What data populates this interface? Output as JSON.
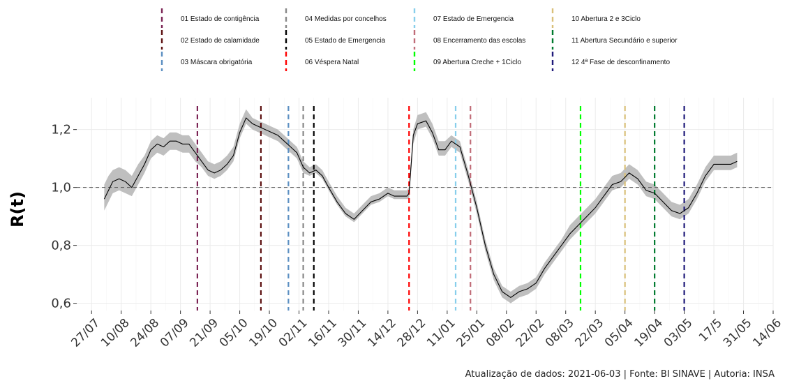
{
  "chart_data": {
    "type": "line",
    "ylabel": "R(t)",
    "xlabel": "",
    "ylim": [
      0.575,
      1.31
    ],
    "yticks": [
      {
        "value": 0.6,
        "label": "0,6"
      },
      {
        "value": 0.8,
        "label": "0,8"
      },
      {
        "value": 1.0,
        "label": "1,0"
      },
      {
        "value": 1.2,
        "label": "1,2"
      }
    ],
    "xlim": [
      "2020-07-20",
      "2021-06-14"
    ],
    "xticks": [
      {
        "date": "2020-07-27",
        "label": "27/07"
      },
      {
        "date": "2020-08-10",
        "label": "10/08"
      },
      {
        "date": "2020-08-24",
        "label": "24/08"
      },
      {
        "date": "2020-09-07",
        "label": "07/09"
      },
      {
        "date": "2020-09-21",
        "label": "21/09"
      },
      {
        "date": "2020-10-05",
        "label": "05/10"
      },
      {
        "date": "2020-10-19",
        "label": "19/10"
      },
      {
        "date": "2020-11-02",
        "label": "02/11"
      },
      {
        "date": "2020-11-16",
        "label": "16/11"
      },
      {
        "date": "2020-11-30",
        "label": "30/11"
      },
      {
        "date": "2020-12-14",
        "label": "14/12"
      },
      {
        "date": "2020-12-28",
        "label": "28/12"
      },
      {
        "date": "2021-01-11",
        "label": "11/01"
      },
      {
        "date": "2021-01-25",
        "label": "25/01"
      },
      {
        "date": "2021-02-08",
        "label": "08/02"
      },
      {
        "date": "2021-02-22",
        "label": "22/02"
      },
      {
        "date": "2021-03-08",
        "label": "08/03"
      },
      {
        "date": "2021-03-22",
        "label": "22/03"
      },
      {
        "date": "2021-04-05",
        "label": "05/04"
      },
      {
        "date": "2021-04-19",
        "label": "19/04"
      },
      {
        "date": "2021-05-03",
        "label": "03/05"
      },
      {
        "date": "2021-05-17",
        "label": "17/5"
      },
      {
        "date": "2021-05-31",
        "label": "31/05"
      },
      {
        "date": "2021-06-14",
        "label": "14/06"
      }
    ],
    "reference_line": {
      "y": 1.0,
      "style": "dashed",
      "color": "#555555"
    },
    "series": [
      {
        "line_color": "#000000",
        "band_color": "#bfbfbf",
        "points": [
          {
            "date": "2020-08-02",
            "r": 0.96,
            "lo": 0.92,
            "hi": 1.01
          },
          {
            "date": "2020-08-04",
            "r": 0.99,
            "lo": 0.95,
            "hi": 1.04
          },
          {
            "date": "2020-08-06",
            "r": 1.02,
            "lo": 0.98,
            "hi": 1.06
          },
          {
            "date": "2020-08-09",
            "r": 1.03,
            "lo": 0.99,
            "hi": 1.07
          },
          {
            "date": "2020-08-12",
            "r": 1.02,
            "lo": 0.98,
            "hi": 1.06
          },
          {
            "date": "2020-08-15",
            "r": 1.0,
            "lo": 0.97,
            "hi": 1.04
          },
          {
            "date": "2020-08-18",
            "r": 1.04,
            "lo": 1.01,
            "hi": 1.08
          },
          {
            "date": "2020-08-21",
            "r": 1.08,
            "lo": 1.05,
            "hi": 1.11
          },
          {
            "date": "2020-08-24",
            "r": 1.13,
            "lo": 1.1,
            "hi": 1.16
          },
          {
            "date": "2020-08-27",
            "r": 1.15,
            "lo": 1.12,
            "hi": 1.18
          },
          {
            "date": "2020-08-30",
            "r": 1.14,
            "lo": 1.11,
            "hi": 1.17
          },
          {
            "date": "2020-09-02",
            "r": 1.16,
            "lo": 1.13,
            "hi": 1.19
          },
          {
            "date": "2020-09-05",
            "r": 1.16,
            "lo": 1.13,
            "hi": 1.19
          },
          {
            "date": "2020-09-08",
            "r": 1.15,
            "lo": 1.12,
            "hi": 1.18
          },
          {
            "date": "2020-09-11",
            "r": 1.15,
            "lo": 1.12,
            "hi": 1.18
          },
          {
            "date": "2020-09-14",
            "r": 1.12,
            "lo": 1.09,
            "hi": 1.15
          },
          {
            "date": "2020-09-17",
            "r": 1.09,
            "lo": 1.07,
            "hi": 1.12
          },
          {
            "date": "2020-09-20",
            "r": 1.06,
            "lo": 1.04,
            "hi": 1.09
          },
          {
            "date": "2020-09-23",
            "r": 1.05,
            "lo": 1.03,
            "hi": 1.08
          },
          {
            "date": "2020-09-26",
            "r": 1.06,
            "lo": 1.04,
            "hi": 1.09
          },
          {
            "date": "2020-09-29",
            "r": 1.08,
            "lo": 1.06,
            "hi": 1.11
          },
          {
            "date": "2020-10-02",
            "r": 1.11,
            "lo": 1.09,
            "hi": 1.14
          },
          {
            "date": "2020-10-05",
            "r": 1.19,
            "lo": 1.17,
            "hi": 1.22
          },
          {
            "date": "2020-10-08",
            "r": 1.24,
            "lo": 1.22,
            "hi": 1.27
          },
          {
            "date": "2020-10-11",
            "r": 1.22,
            "lo": 1.2,
            "hi": 1.24
          },
          {
            "date": "2020-10-14",
            "r": 1.21,
            "lo": 1.19,
            "hi": 1.23
          },
          {
            "date": "2020-10-17",
            "r": 1.2,
            "lo": 1.18,
            "hi": 1.22
          },
          {
            "date": "2020-10-20",
            "r": 1.19,
            "lo": 1.17,
            "hi": 1.21
          },
          {
            "date": "2020-10-23",
            "r": 1.18,
            "lo": 1.16,
            "hi": 1.2
          },
          {
            "date": "2020-10-26",
            "r": 1.16,
            "lo": 1.14,
            "hi": 1.18
          },
          {
            "date": "2020-10-29",
            "r": 1.14,
            "lo": 1.12,
            "hi": 1.16
          },
          {
            "date": "2020-11-01",
            "r": 1.12,
            "lo": 1.1,
            "hi": 1.14
          },
          {
            "date": "2020-11-04",
            "r": 1.07,
            "lo": 1.05,
            "hi": 1.09
          },
          {
            "date": "2020-11-07",
            "r": 1.05,
            "lo": 1.04,
            "hi": 1.07
          },
          {
            "date": "2020-11-10",
            "r": 1.06,
            "lo": 1.05,
            "hi": 1.08
          },
          {
            "date": "2020-11-13",
            "r": 1.04,
            "lo": 1.03,
            "hi": 1.06
          },
          {
            "date": "2020-11-16",
            "r": 1.0,
            "lo": 0.99,
            "hi": 1.02
          },
          {
            "date": "2020-11-20",
            "r": 0.95,
            "lo": 0.94,
            "hi": 0.97
          },
          {
            "date": "2020-11-24",
            "r": 0.91,
            "lo": 0.9,
            "hi": 0.93
          },
          {
            "date": "2020-11-28",
            "r": 0.89,
            "lo": 0.88,
            "hi": 0.91
          },
          {
            "date": "2020-12-02",
            "r": 0.92,
            "lo": 0.91,
            "hi": 0.94
          },
          {
            "date": "2020-12-06",
            "r": 0.95,
            "lo": 0.94,
            "hi": 0.97
          },
          {
            "date": "2020-12-10",
            "r": 0.96,
            "lo": 0.95,
            "hi": 0.98
          },
          {
            "date": "2020-12-14",
            "r": 0.98,
            "lo": 0.97,
            "hi": 1.0
          },
          {
            "date": "2020-12-17",
            "r": 0.97,
            "lo": 0.96,
            "hi": 0.99
          },
          {
            "date": "2020-12-20",
            "r": 0.97,
            "lo": 0.96,
            "hi": 0.99
          },
          {
            "date": "2020-12-23",
            "r": 0.97,
            "lo": 0.96,
            "hi": 0.99
          },
          {
            "date": "2020-12-24",
            "r": 0.98,
            "lo": 0.96,
            "hi": 1.0
          },
          {
            "date": "2020-12-26",
            "r": 1.18,
            "lo": 1.15,
            "hi": 1.2
          },
          {
            "date": "2020-12-28",
            "r": 1.22,
            "lo": 1.2,
            "hi": 1.25
          },
          {
            "date": "2021-01-01",
            "r": 1.23,
            "lo": 1.21,
            "hi": 1.26
          },
          {
            "date": "2021-01-04",
            "r": 1.19,
            "lo": 1.17,
            "hi": 1.22
          },
          {
            "date": "2021-01-07",
            "r": 1.13,
            "lo": 1.11,
            "hi": 1.16
          },
          {
            "date": "2021-01-10",
            "r": 1.13,
            "lo": 1.11,
            "hi": 1.16
          },
          {
            "date": "2021-01-13",
            "r": 1.16,
            "lo": 1.14,
            "hi": 1.18
          },
          {
            "date": "2021-01-17",
            "r": 1.14,
            "lo": 1.12,
            "hi": 1.16
          },
          {
            "date": "2021-01-21",
            "r": 1.04,
            "lo": 1.02,
            "hi": 1.06
          },
          {
            "date": "2021-01-25",
            "r": 0.93,
            "lo": 0.91,
            "hi": 0.95
          },
          {
            "date": "2021-01-29",
            "r": 0.8,
            "lo": 0.78,
            "hi": 0.82
          },
          {
            "date": "2021-02-02",
            "r": 0.7,
            "lo": 0.68,
            "hi": 0.72
          },
          {
            "date": "2021-02-06",
            "r": 0.64,
            "lo": 0.62,
            "hi": 0.66
          },
          {
            "date": "2021-02-10",
            "r": 0.62,
            "lo": 0.6,
            "hi": 0.64
          },
          {
            "date": "2021-02-14",
            "r": 0.64,
            "lo": 0.62,
            "hi": 0.66
          },
          {
            "date": "2021-02-18",
            "r": 0.65,
            "lo": 0.63,
            "hi": 0.67
          },
          {
            "date": "2021-02-22",
            "r": 0.67,
            "lo": 0.65,
            "hi": 0.69
          },
          {
            "date": "2021-02-26",
            "r": 0.72,
            "lo": 0.7,
            "hi": 0.74
          },
          {
            "date": "2021-03-02",
            "r": 0.76,
            "lo": 0.74,
            "hi": 0.78
          },
          {
            "date": "2021-03-06",
            "r": 0.8,
            "lo": 0.78,
            "hi": 0.82
          },
          {
            "date": "2021-03-10",
            "r": 0.84,
            "lo": 0.82,
            "hi": 0.87
          },
          {
            "date": "2021-03-14",
            "r": 0.87,
            "lo": 0.85,
            "hi": 0.9
          },
          {
            "date": "2021-03-18",
            "r": 0.9,
            "lo": 0.88,
            "hi": 0.93
          },
          {
            "date": "2021-03-22",
            "r": 0.93,
            "lo": 0.91,
            "hi": 0.96
          },
          {
            "date": "2021-03-26",
            "r": 0.97,
            "lo": 0.95,
            "hi": 1.0
          },
          {
            "date": "2021-03-30",
            "r": 1.01,
            "lo": 0.99,
            "hi": 1.04
          },
          {
            "date": "2021-04-03",
            "r": 1.02,
            "lo": 1.0,
            "hi": 1.05
          },
          {
            "date": "2021-04-07",
            "r": 1.05,
            "lo": 1.03,
            "hi": 1.08
          },
          {
            "date": "2021-04-11",
            "r": 1.03,
            "lo": 1.01,
            "hi": 1.06
          },
          {
            "date": "2021-04-15",
            "r": 0.99,
            "lo": 0.97,
            "hi": 1.02
          },
          {
            "date": "2021-04-19",
            "r": 0.98,
            "lo": 0.96,
            "hi": 1.01
          },
          {
            "date": "2021-04-23",
            "r": 0.95,
            "lo": 0.93,
            "hi": 0.98
          },
          {
            "date": "2021-04-27",
            "r": 0.92,
            "lo": 0.9,
            "hi": 0.95
          },
          {
            "date": "2021-05-01",
            "r": 0.91,
            "lo": 0.89,
            "hi": 0.94
          },
          {
            "date": "2021-05-05",
            "r": 0.93,
            "lo": 0.91,
            "hi": 0.96
          },
          {
            "date": "2021-05-09",
            "r": 0.98,
            "lo": 0.96,
            "hi": 1.01
          },
          {
            "date": "2021-05-13",
            "r": 1.04,
            "lo": 1.02,
            "hi": 1.07
          },
          {
            "date": "2021-05-17",
            "r": 1.08,
            "lo": 1.06,
            "hi": 1.11
          },
          {
            "date": "2021-05-21",
            "r": 1.08,
            "lo": 1.06,
            "hi": 1.11
          },
          {
            "date": "2021-05-25",
            "r": 1.08,
            "lo": 1.06,
            "hi": 1.11
          },
          {
            "date": "2021-05-28",
            "r": 1.09,
            "lo": 1.07,
            "hi": 1.12
          }
        ]
      }
    ],
    "events": [
      {
        "label": "01 Estado de contigência",
        "date": "2020-09-15",
        "color": "#7b2354"
      },
      {
        "label": "02 Estado de calamidade",
        "date": "2020-10-15",
        "color": "#5c1010"
      },
      {
        "label": "03 Máscara obrigatória",
        "date": "2020-10-28",
        "color": "#5b8fc2"
      },
      {
        "label": "04 Medidas por concelhos",
        "date": "2020-11-04",
        "color": "#888888"
      },
      {
        "label": "05 Estado de Emergencia",
        "date": "2020-11-09",
        "color": "#000000"
      },
      {
        "label": "06 Véspera Natal",
        "date": "2020-12-24",
        "color": "#ff0000"
      },
      {
        "label": "07 Estado de Emergencia",
        "date": "2021-01-15",
        "color": "#87ceeb"
      },
      {
        "label": "08 Encerramento das escolas",
        "date": "2021-01-22",
        "color": "#c06c78"
      },
      {
        "label": "09 Abertura Creche + 1Ciclo",
        "date": "2021-03-15",
        "color": "#00ff00"
      },
      {
        "label": "10 Abertura 2 e 3Ciclo",
        "date": "2021-04-05",
        "color": "#d9c07a"
      },
      {
        "label": "11 Abertura Secundário e superior",
        "date": "2021-04-19",
        "color": "#007a2e"
      },
      {
        "label": "12 4ª Fase de desconfinamento",
        "date": "2021-05-03",
        "color": "#1f1a7a"
      }
    ],
    "grid": true,
    "legend": "top",
    "caption": "Atualização de dados: 2021-06-03 | Fonte: BI SINAVE | Autoria: INSA"
  }
}
